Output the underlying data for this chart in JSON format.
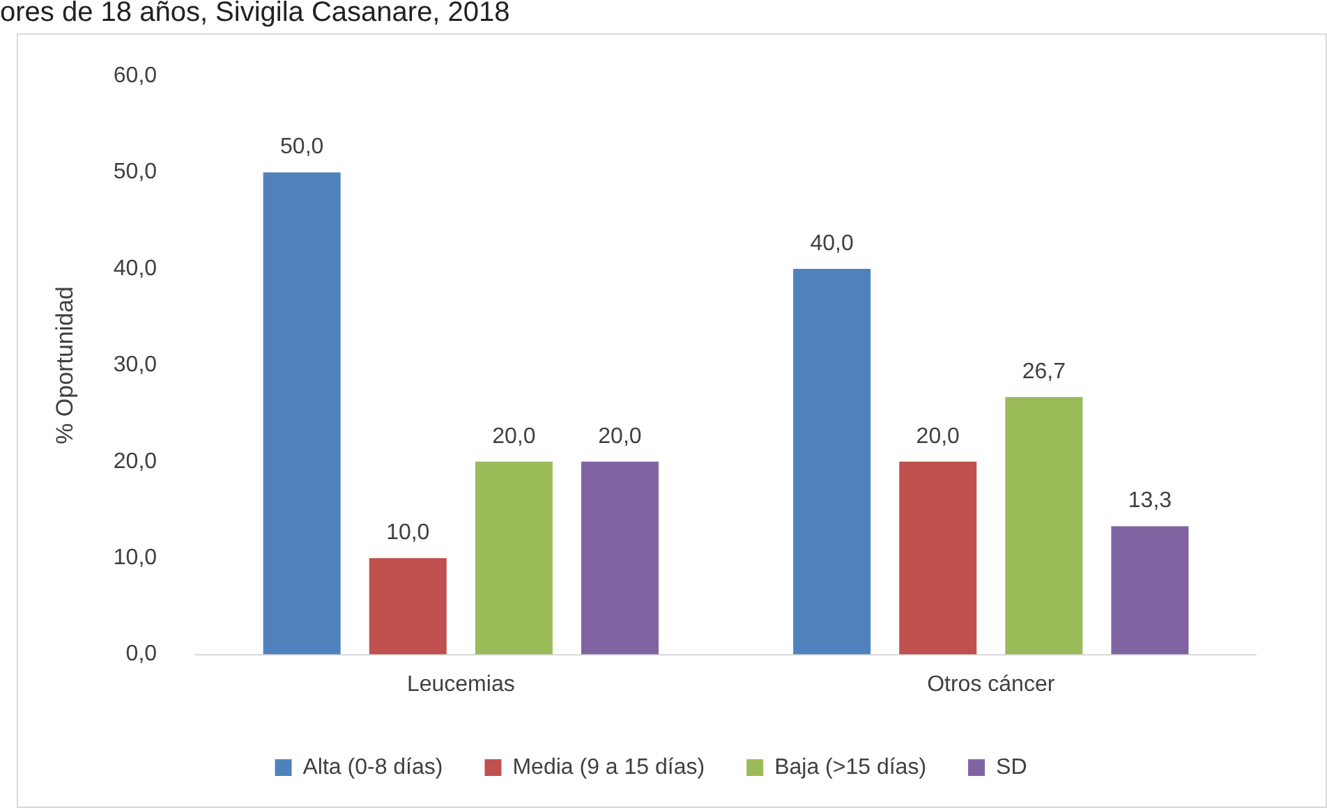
{
  "chart_data": {
    "type": "bar",
    "title": "ores de 18 años, Sivigila Casanare, 2018",
    "ylabel": "% Oportunidad",
    "categories": [
      "Leucemias",
      "Otros cáncer"
    ],
    "series": [
      {
        "name": "Alta (0-8 días)",
        "color": "#4f81bd",
        "values": [
          50.0,
          40.0
        ],
        "value_labels": [
          "50,0",
          "40,0"
        ]
      },
      {
        "name": "Media (9 a 15 días)",
        "color": "#c0504d",
        "values": [
          10.0,
          20.0
        ],
        "value_labels": [
          "10,0",
          "20,0"
        ]
      },
      {
        "name": "Baja (>15 días)",
        "color": "#9bbb59",
        "values": [
          20.0,
          26.7
        ],
        "value_labels": [
          "20,0",
          "26,7"
        ]
      },
      {
        "name": "SD",
        "color": "#8064a2",
        "values": [
          20.0,
          13.3
        ],
        "value_labels": [
          "20,0",
          "13,3"
        ]
      }
    ],
    "ylim": [
      0,
      60
    ],
    "yticks": [
      {
        "value": 0,
        "label": "0,0"
      },
      {
        "value": 10,
        "label": "10,0"
      },
      {
        "value": 20,
        "label": "20,0"
      },
      {
        "value": 30,
        "label": "30,0"
      },
      {
        "value": 40,
        "label": "40,0"
      },
      {
        "value": 50,
        "label": "50,0"
      },
      {
        "value": 60,
        "label": "60,0"
      }
    ],
    "grid": false,
    "legend": "bottom"
  }
}
